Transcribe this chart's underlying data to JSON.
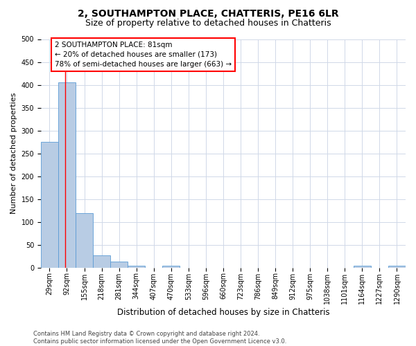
{
  "title": "2, SOUTHAMPTON PLACE, CHATTERIS, PE16 6LR",
  "subtitle": "Size of property relative to detached houses in Chatteris",
  "xlabel": "Distribution of detached houses by size in Chatteris",
  "ylabel": "Number of detached properties",
  "categories": [
    "29sqm",
    "92sqm",
    "155sqm",
    "218sqm",
    "281sqm",
    "344sqm",
    "407sqm",
    "470sqm",
    "533sqm",
    "596sqm",
    "660sqm",
    "723sqm",
    "786sqm",
    "849sqm",
    "912sqm",
    "975sqm",
    "1038sqm",
    "1101sqm",
    "1164sqm",
    "1227sqm",
    "1290sqm"
  ],
  "values": [
    275,
    405,
    120,
    28,
    14,
    5,
    0,
    5,
    0,
    0,
    0,
    0,
    0,
    0,
    0,
    0,
    0,
    0,
    5,
    0,
    5
  ],
  "bar_color": "#b8cce4",
  "bar_edge_color": "#5b9bd5",
  "ylim": [
    0,
    500
  ],
  "yticks": [
    0,
    50,
    100,
    150,
    200,
    250,
    300,
    350,
    400,
    450,
    500
  ],
  "annotation_box_text": "2 SOUTHAMPTON PLACE: 81sqm\n← 20% of detached houses are smaller (173)\n78% of semi-detached houses are larger (663) →",
  "annotation_box_color": "#ffffff",
  "annotation_box_edge_color": "#ff0000",
  "red_line_x": 0.9,
  "footer_line1": "Contains HM Land Registry data © Crown copyright and database right 2024.",
  "footer_line2": "Contains public sector information licensed under the Open Government Licence v3.0.",
  "background_color": "#ffffff",
  "grid_color": "#d0d8e8",
  "title_fontsize": 10,
  "subtitle_fontsize": 9,
  "tick_fontsize": 7,
  "ylabel_fontsize": 8,
  "xlabel_fontsize": 8.5,
  "annotation_fontsize": 7.5,
  "footer_fontsize": 6
}
